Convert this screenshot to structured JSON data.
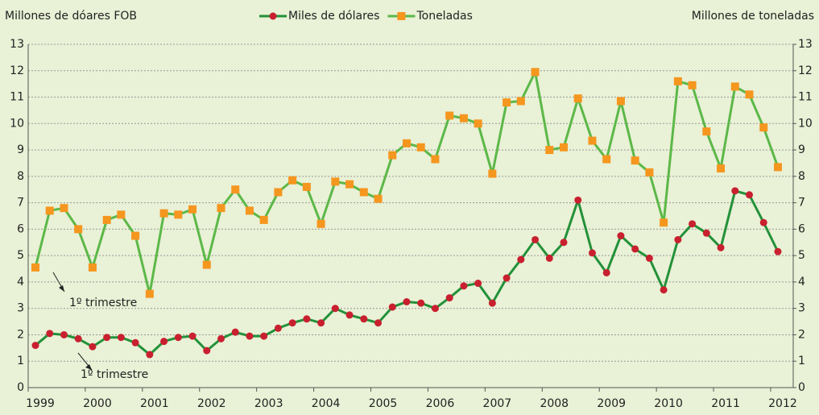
{
  "chart_data": {
    "type": "line",
    "y_axis_title": "Millones de dóares FOB",
    "y2_axis_title": "Millones de toneladas",
    "annotations": [
      "1º trimestre",
      "1º trimestre"
    ],
    "categories": [
      "1999",
      null,
      null,
      null,
      "2000",
      null,
      null,
      null,
      "2001",
      null,
      null,
      null,
      "2002",
      null,
      null,
      null,
      "2003",
      null,
      null,
      null,
      "2004",
      null,
      null,
      null,
      "2005",
      null,
      null,
      null,
      "2006",
      null,
      null,
      null,
      "2007",
      null,
      null,
      null,
      "2008",
      null,
      null,
      null,
      "2009",
      null,
      null,
      null,
      "2010",
      null,
      null,
      null,
      "2011",
      null,
      null,
      null,
      "2012"
    ],
    "series": [
      {
        "name": "Miles de dólares",
        "color": "#239139",
        "marker_color": "#c8202f",
        "marker": "circle",
        "axis": "y",
        "values": [
          1.6,
          2.05,
          2.0,
          1.85,
          1.55,
          1.9,
          1.9,
          1.7,
          1.25,
          1.75,
          1.9,
          1.95,
          1.4,
          1.85,
          2.1,
          1.95,
          1.95,
          2.25,
          2.45,
          2.6,
          2.45,
          3.0,
          2.75,
          2.6,
          2.45,
          3.05,
          3.25,
          3.2,
          3.0,
          3.4,
          3.85,
          3.95,
          3.2,
          4.15,
          4.85,
          5.6,
          4.9,
          5.5,
          7.1,
          5.1,
          4.35,
          5.75,
          5.25,
          4.9,
          3.7,
          5.6,
          6.2,
          5.85,
          5.3,
          7.45,
          7.3,
          6.25,
          5.15
        ]
      },
      {
        "name": "Toneladas",
        "color": "#5cb848",
        "marker_color": "#f5961f",
        "marker": "square",
        "axis": "y2",
        "values": [
          4.55,
          6.7,
          6.8,
          6.0,
          4.55,
          6.35,
          6.55,
          5.75,
          3.55,
          6.6,
          6.55,
          6.75,
          4.65,
          6.8,
          7.5,
          6.7,
          6.35,
          7.4,
          7.85,
          7.6,
          6.2,
          7.8,
          7.7,
          7.4,
          7.15,
          8.8,
          9.25,
          9.1,
          8.65,
          10.3,
          10.2,
          10.0,
          8.1,
          10.8,
          10.85,
          11.95,
          9.0,
          9.1,
          10.95,
          9.35,
          8.65,
          10.85,
          8.6,
          8.15,
          6.25,
          11.6,
          11.45,
          9.7,
          8.3,
          11.4,
          11.1,
          9.85,
          8.35
        ]
      }
    ],
    "ylim": [
      0,
      13
    ],
    "yticks": [
      0,
      1,
      2,
      3,
      4,
      5,
      6,
      7,
      8,
      9,
      10,
      11,
      12,
      13
    ],
    "y2lim": [
      0,
      13
    ],
    "y2ticks": [
      0,
      1,
      2,
      3,
      4,
      5,
      6,
      7,
      8,
      9,
      10,
      11,
      12,
      13
    ],
    "grid": true,
    "legend": "top"
  }
}
